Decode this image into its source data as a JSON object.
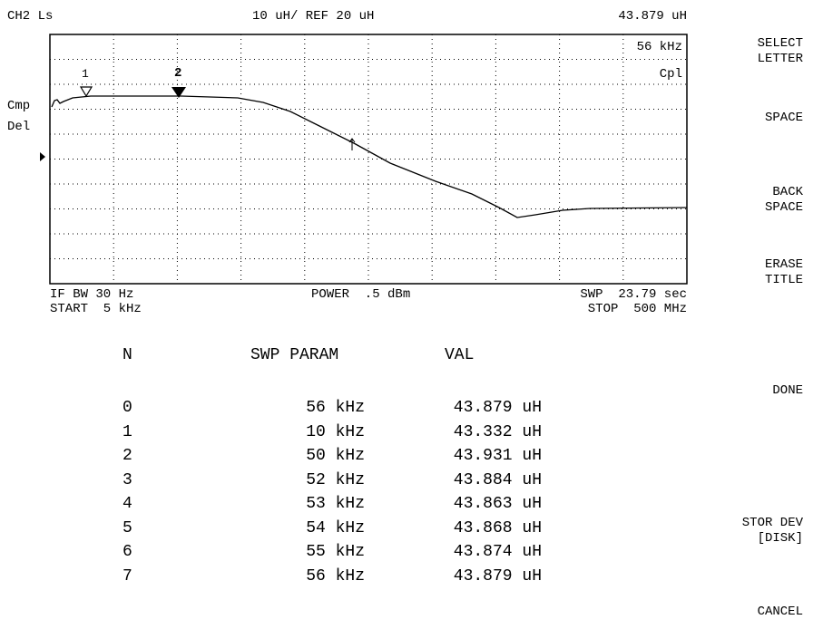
{
  "header": {
    "channel": "CH2 Ls",
    "scale": "10 uH/ REF 20 uH",
    "marker_value": "43.879 uH"
  },
  "graticule": {
    "marker_freq": "56 kHz",
    "coupling": "Cpl",
    "side_labels": [
      "Cmp",
      "Del"
    ],
    "markers": [
      "1",
      "2"
    ]
  },
  "footer": {
    "if_bw": "IF BW 30 Hz",
    "start": "START  5 kHz",
    "power": "POWER  .5 dBm",
    "sweep": "SWP  23.79 sec",
    "stop": "STOP  500 MHz"
  },
  "table": {
    "headers": [
      "N",
      "SWP PARAM",
      "VAL"
    ],
    "rows": [
      [
        "0",
        "56 kHz",
        "43.879 uH"
      ],
      [
        "1",
        "10 kHz",
        "43.332 uH"
      ],
      [
        "2",
        "50 kHz",
        "43.931 uH"
      ],
      [
        "3",
        "52 kHz",
        "43.884 uH"
      ],
      [
        "4",
        "53 kHz",
        "43.863 uH"
      ],
      [
        "5",
        "54 kHz",
        "43.868 uH"
      ],
      [
        "6",
        "55 kHz",
        "43.874 uH"
      ],
      [
        "7",
        "56 kHz",
        "43.879 uH"
      ]
    ]
  },
  "softkeys": [
    [
      "SELECT",
      "LETTER"
    ],
    [
      "SPACE"
    ],
    [
      "BACK",
      "SPACE"
    ],
    [
      "ERASE",
      "TITLE"
    ],
    [
      "DONE"
    ],
    [
      "STOR DEV",
      "[DISK]"
    ],
    [
      "CANCEL"
    ]
  ]
}
